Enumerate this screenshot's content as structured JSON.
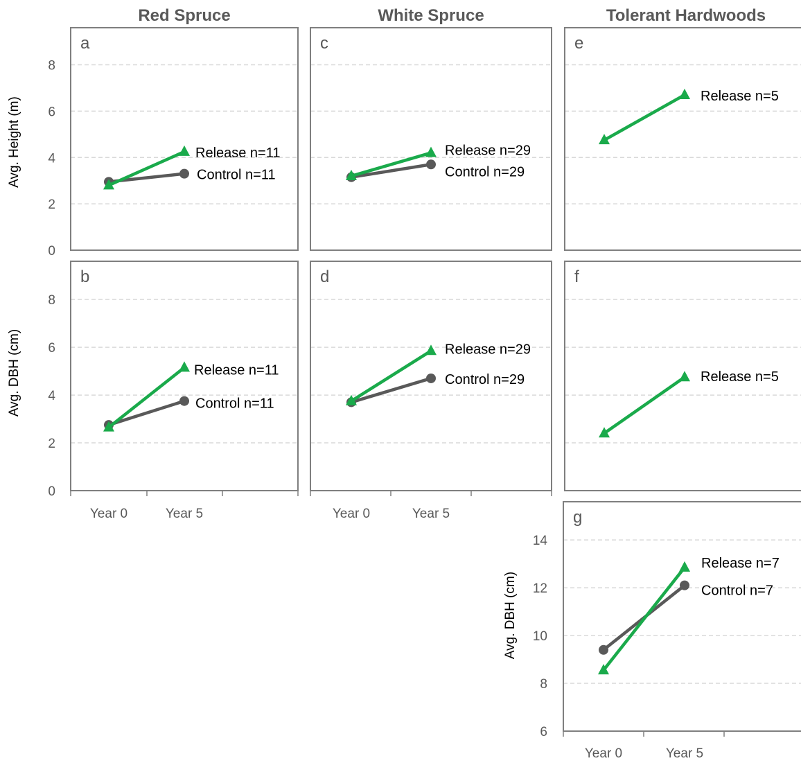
{
  "column_titles": [
    "Red Spruce",
    "White Spruce",
    "Tolerant Hardwoods"
  ],
  "colors": {
    "release": "#1aaa4b",
    "control": "#595959"
  },
  "chart_data": [
    {
      "type": "line",
      "panel": "a",
      "column": "Red Spruce",
      "ylabel": "Avg. Height (m)",
      "categories": [
        "Year 0",
        "Year 5"
      ],
      "ylim": [
        0,
        9.6
      ],
      "yticks": [
        0,
        2,
        4,
        6,
        8
      ],
      "grid": true,
      "series": [
        {
          "name": "Release n=11",
          "values": [
            2.8,
            4.25
          ]
        },
        {
          "name": "Control n=11",
          "values": [
            2.95,
            3.3
          ]
        }
      ]
    },
    {
      "type": "line",
      "panel": "b",
      "column": "Red Spruce",
      "ylabel": "Avg. DBH (cm)",
      "categories": [
        "Year 0",
        "Year 5"
      ],
      "ylim": [
        0,
        9.6
      ],
      "yticks": [
        0,
        2,
        4,
        6,
        8
      ],
      "grid": true,
      "series": [
        {
          "name": "Release n=11",
          "values": [
            2.65,
            5.15
          ]
        },
        {
          "name": "Control n=11",
          "values": [
            2.75,
            3.75
          ]
        }
      ]
    },
    {
      "type": "line",
      "panel": "c",
      "column": "White Spruce",
      "categories": [
        "Year 0",
        "Year 5"
      ],
      "ylim": [
        0,
        9.6
      ],
      "yticks": [
        0,
        2,
        4,
        6,
        8
      ],
      "grid": true,
      "series": [
        {
          "name": "Release n=29",
          "values": [
            3.2,
            4.2
          ]
        },
        {
          "name": "Control n=29",
          "values": [
            3.15,
            3.7
          ]
        }
      ]
    },
    {
      "type": "line",
      "panel": "d",
      "column": "White Spruce",
      "categories": [
        "Year 0",
        "Year 5"
      ],
      "ylim": [
        0,
        9.6
      ],
      "yticks": [
        0,
        2,
        4,
        6,
        8
      ],
      "grid": true,
      "series": [
        {
          "name": "Release n=29",
          "values": [
            3.75,
            5.85
          ]
        },
        {
          "name": "Control n=29",
          "values": [
            3.7,
            4.7
          ]
        }
      ]
    },
    {
      "type": "line",
      "panel": "e",
      "column": "Tolerant Hardwoods",
      "categories": [
        "Year 0",
        "Year 5"
      ],
      "ylim": [
        0,
        9.6
      ],
      "yticks": [
        0,
        2,
        4,
        6,
        8
      ],
      "grid": true,
      "series": [
        {
          "name": "Release n=5",
          "values": [
            4.75,
            6.7
          ]
        }
      ]
    },
    {
      "type": "line",
      "panel": "f",
      "column": "Tolerant Hardwoods",
      "categories": [
        "Year 0",
        "Year 5"
      ],
      "ylim": [
        0,
        9.6
      ],
      "yticks": [
        0,
        2,
        4,
        6,
        8
      ],
      "grid": true,
      "series": [
        {
          "name": "Release n=5",
          "values": [
            2.4,
            4.75
          ]
        }
      ]
    },
    {
      "type": "line",
      "panel": "g",
      "column": "Tolerant Hardwoods",
      "ylabel": "Avg. DBH (cm)",
      "categories": [
        "Year 0",
        "Year 5"
      ],
      "ylim": [
        6,
        15.6
      ],
      "yticks": [
        6,
        8,
        10,
        12,
        14
      ],
      "grid": true,
      "series": [
        {
          "name": "Release n=7",
          "values": [
            8.55,
            12.85
          ]
        },
        {
          "name": "Control n=7",
          "values": [
            9.4,
            12.1
          ]
        }
      ]
    }
  ]
}
